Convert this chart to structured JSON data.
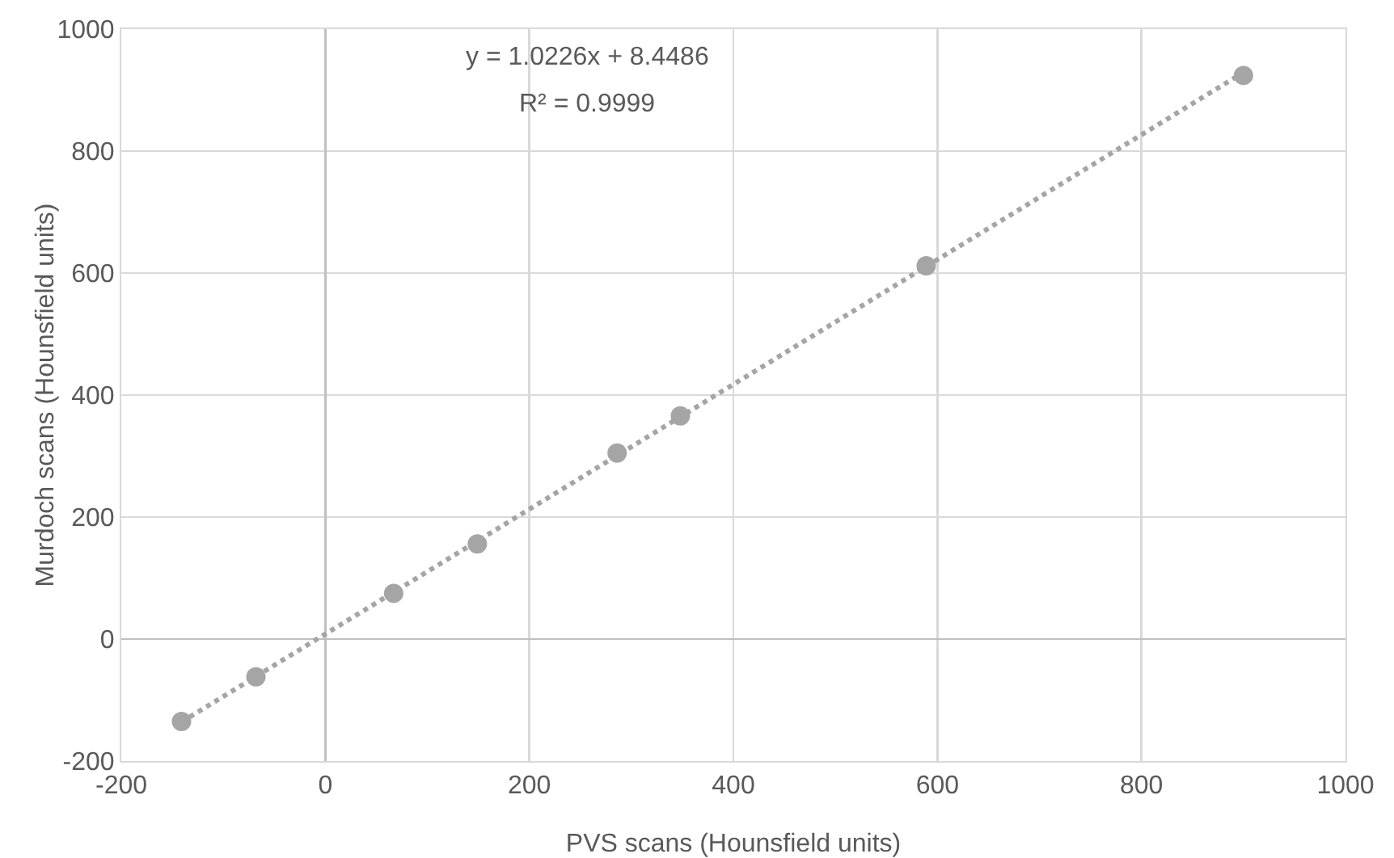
{
  "chart_data": {
    "type": "scatter",
    "xlabel": "PVS scans (Hounsfield units)",
    "ylabel": "Murdoch scans (Hounsfield units)",
    "annotations": [
      "y = 1.0226x + 8.4486",
      "R² = 0.9999"
    ],
    "xlim": [
      -200,
      1000
    ],
    "xticks": [
      -200,
      0,
      200,
      400,
      600,
      800,
      1000
    ],
    "ylim": [
      -200,
      1000
    ],
    "yticks": [
      -200,
      0,
      200,
      400,
      600,
      800,
      1000
    ],
    "grid": true,
    "marker": "circle",
    "series": [
      {
        "color": "#a5a5a5",
        "x": [
          -141,
          -68,
          67,
          149,
          286,
          348,
          589,
          900
        ],
        "values": [
          -135,
          -62,
          75,
          156,
          305,
          366,
          612,
          924
        ]
      },
      {
        "type": "line",
        "color": "#a5a5a5",
        "line_style": "dotted",
        "marker": "none",
        "x": [
          -141,
          900
        ],
        "values": [
          -136,
          929
        ]
      }
    ]
  }
}
